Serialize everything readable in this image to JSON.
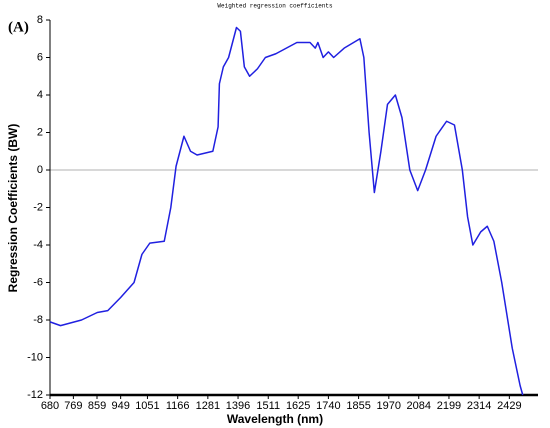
{
  "chart_data": {
    "type": "line",
    "title": "Weighted regression coefficients",
    "panel_label": "(A)",
    "x_label": "Wavelength (nm)",
    "y_label": "Regression Coefficients (BW)",
    "xlim": [
      680,
      2500
    ],
    "ylim": [
      -12,
      8
    ],
    "xticks": [
      680,
      769,
      859,
      949,
      1051,
      1166,
      1281,
      1396,
      1511,
      1625,
      1740,
      1855,
      1970,
      2084,
      2199,
      2314,
      2429
    ],
    "yticks": [
      -12,
      -10,
      -8,
      -6,
      -4,
      -2,
      0,
      2,
      4,
      6,
      8
    ],
    "zero_line": true,
    "series": [
      {
        "color": "#2020e0",
        "x": [
          680,
          720,
          800,
          860,
          900,
          949,
          1000,
          1030,
          1060,
          1115,
          1140,
          1160,
          1190,
          1215,
          1240,
          1270,
          1300,
          1320,
          1325,
          1340,
          1360,
          1390,
          1405,
          1420,
          1440,
          1470,
          1500,
          1540,
          1580,
          1620,
          1670,
          1690,
          1700,
          1720,
          1740,
          1760,
          1800,
          1860,
          1875,
          1895,
          1915,
          1940,
          1965,
          1995,
          2020,
          2050,
          2080,
          2110,
          2150,
          2190,
          2220,
          2250,
          2270,
          2290,
          2320,
          2345,
          2370,
          2400,
          2440,
          2470,
          2480
        ],
        "values": [
          -8.1,
          -8.3,
          -8.0,
          -7.6,
          -7.5,
          -6.8,
          -6.0,
          -4.5,
          -3.9,
          -3.8,
          -2.0,
          0.2,
          1.8,
          1.0,
          0.8,
          0.9,
          1.0,
          2.3,
          4.6,
          5.5,
          6.0,
          7.6,
          7.4,
          5.5,
          5.0,
          5.4,
          6.0,
          6.2,
          6.5,
          6.8,
          6.8,
          6.5,
          6.8,
          6.0,
          6.3,
          6.0,
          6.5,
          7.0,
          6.0,
          2.0,
          -1.2,
          1.0,
          3.5,
          4.0,
          2.8,
          0.0,
          -1.1,
          0.0,
          1.8,
          2.6,
          2.4,
          0.0,
          -2.5,
          -4.0,
          -3.3,
          -3.0,
          -3.8,
          -6.0,
          -9.5,
          -11.5,
          -12.0
        ]
      }
    ]
  }
}
